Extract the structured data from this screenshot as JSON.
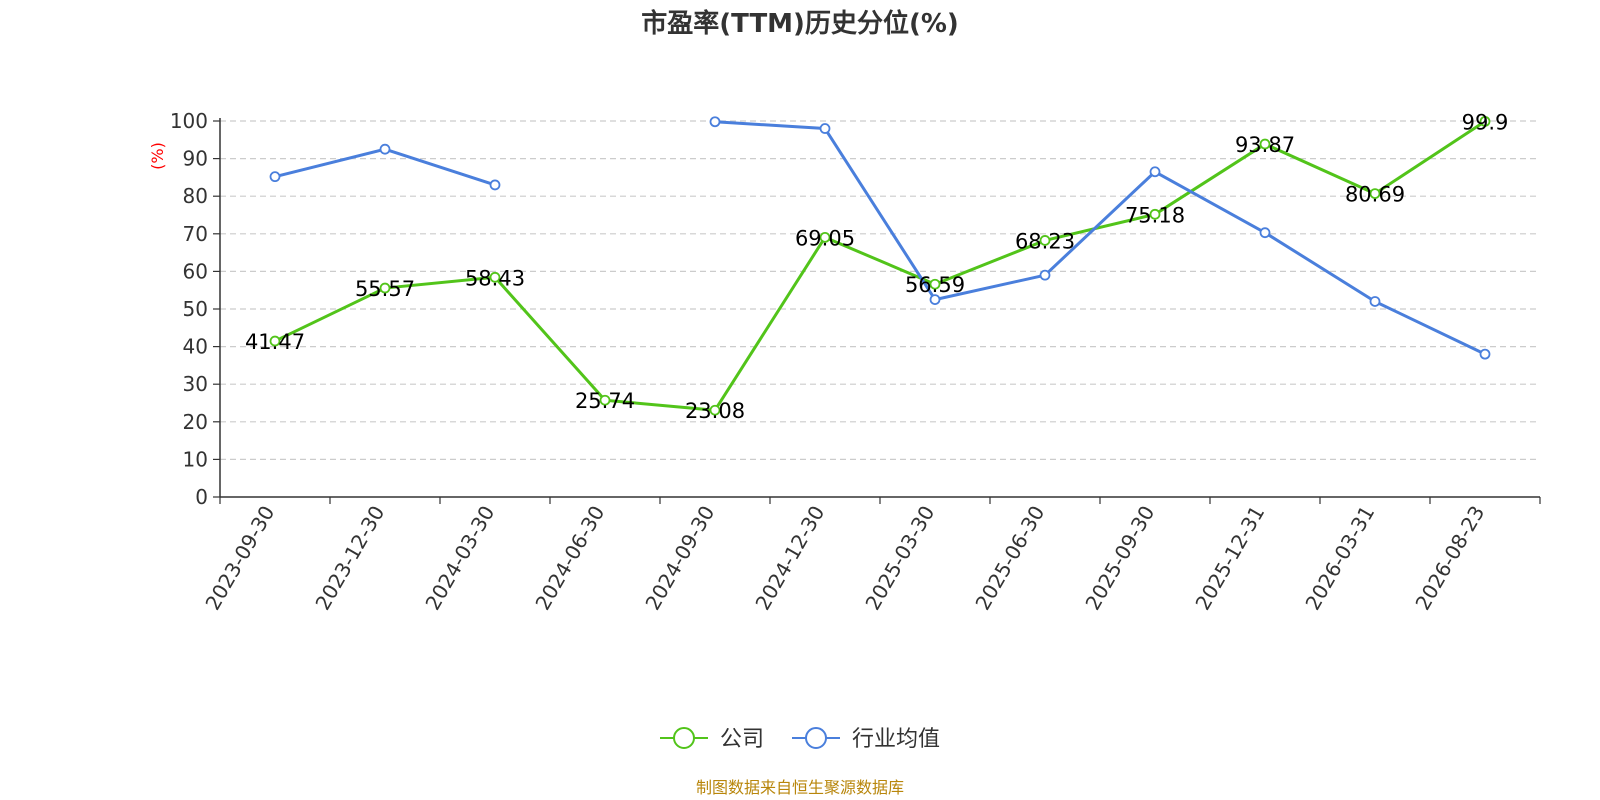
{
  "chart_data": {
    "type": "line",
    "title": "市盈率(TTM)历史分位(%)",
    "ylabel": "(%)",
    "ylim": [
      0,
      100
    ],
    "yticks": [
      0,
      10,
      20,
      30,
      40,
      50,
      60,
      70,
      80,
      90,
      100
    ],
    "categories": [
      "2023-09-30",
      "2023-12-30",
      "2024-03-30",
      "2024-06-30",
      "2024-09-30",
      "2024-12-30",
      "2025-03-30",
      "2025-06-30",
      "2025-09-30",
      "2025-12-31",
      "2026-03-31",
      "2026-08-23"
    ],
    "grid": true,
    "legend_position": "bottom",
    "series": [
      {
        "name": "公司",
        "color": "#52c41a",
        "values": [
          41.47,
          55.57,
          58.43,
          25.74,
          23.08,
          69.05,
          56.59,
          68.23,
          75.18,
          93.87,
          80.69,
          99.9
        ],
        "labels": [
          "41.47",
          "55.57",
          "58.43",
          "25.74",
          "23.08",
          "69.05",
          "56.59",
          "68.23",
          "75.18",
          "93.87",
          "80.69",
          "99.9"
        ]
      },
      {
        "name": "行业均值",
        "color": "#4a7fdc",
        "values": [
          85.2,
          92.5,
          83.0,
          null,
          99.8,
          98.0,
          52.5,
          59.0,
          86.5,
          70.3,
          52.0,
          38.0
        ]
      }
    ]
  },
  "source_text": "制图数据来自恒生聚源数据库"
}
